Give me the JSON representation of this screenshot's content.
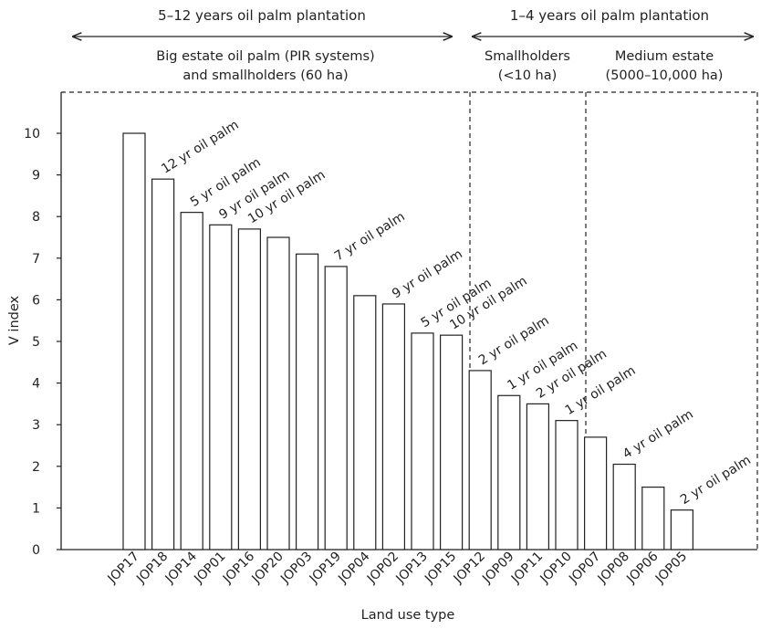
{
  "chart_data": {
    "type": "bar",
    "title": "",
    "xlabel": "Land use type",
    "ylabel": "V index",
    "ylim": [
      0,
      11
    ],
    "yticks": [
      "0",
      "1",
      "2",
      "3",
      "4",
      "5",
      "6",
      "7",
      "8",
      "9",
      "10"
    ],
    "grid": false,
    "categories": [
      "JOP17",
      "JOP18",
      "JOP14",
      "JOP01",
      "JOP16",
      "JOP20",
      "JOP03",
      "JOP19",
      "JOP04",
      "JOP02",
      "JOP13",
      "JOP15",
      "JOP12",
      "JOP09",
      "JOP11",
      "JOP10",
      "JOP07",
      "JOP08",
      "JOP06",
      "JOP05"
    ],
    "values": [
      10.0,
      8.9,
      8.1,
      7.8,
      7.7,
      7.5,
      7.1,
      6.8,
      6.1,
      5.9,
      5.2,
      5.15,
      4.3,
      3.7,
      3.5,
      3.1,
      2.7,
      2.05,
      1.5,
      0.95
    ],
    "bar_labels": [
      "",
      "12 yr oil palm",
      "5 yr oil palm",
      "9 yr oil palm",
      "10 yr oil palm",
      "",
      "",
      "7 yr oil palm",
      "",
      "9 yr oil palm",
      "5 yr oil palm",
      "10 yr oil palm",
      "2 yr oil palm",
      "1 yr oil palm",
      "2 yr oil palm",
      "1 yr oil palm",
      "",
      "4 yr oil palm",
      "",
      "2 yr oil palm"
    ],
    "headers": [
      {
        "text": "5–12 years oil palm plantation"
      },
      {
        "text": "1–4 years oil palm plantation"
      }
    ],
    "groups": [
      {
        "lines": [
          "Big estate oil palm (PIR systems)",
          "and smallholders (60 ha)"
        ]
      },
      {
        "lines": [
          "Smallholders",
          "(<10 ha)"
        ]
      },
      {
        "lines": [
          "Medium estate",
          "(5000–10,000 ha)"
        ]
      }
    ]
  }
}
